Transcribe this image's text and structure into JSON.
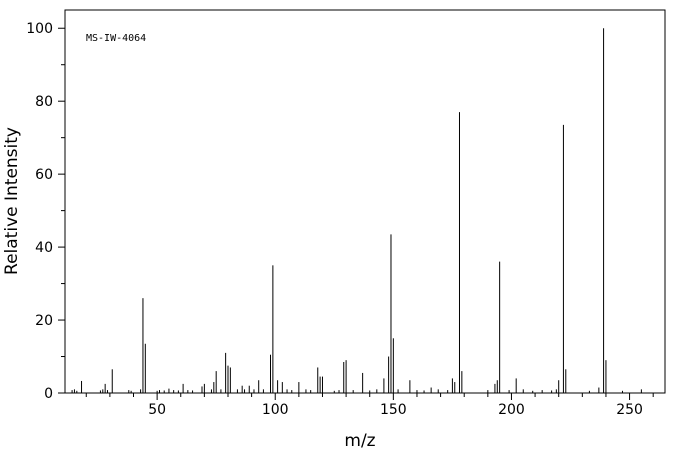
{
  "chart_data": {
    "type": "stem",
    "annotation": "MS-IW-4064",
    "xlabel": "m/z",
    "ylabel": "Relative Intensity",
    "color": "#000000",
    "x": [
      14,
      15,
      16,
      18,
      26,
      27,
      28,
      29,
      31,
      38,
      39,
      43,
      44,
      45,
      50,
      51,
      53,
      55,
      57,
      59,
      61,
      63,
      65,
      69,
      70,
      73,
      74,
      75,
      77,
      79,
      80,
      81,
      84,
      86,
      87,
      89,
      91,
      93,
      95,
      98,
      99,
      101,
      103,
      105,
      107,
      110,
      113,
      115,
      118,
      119,
      120,
      125,
      127,
      129,
      130,
      133,
      137,
      140,
      143,
      146,
      148,
      149,
      150,
      152,
      157,
      160,
      163,
      166,
      169,
      173,
      175,
      176,
      178,
      179,
      190,
      193,
      194,
      195,
      199,
      202,
      205,
      209,
      213,
      217,
      219,
      220,
      222,
      223,
      233,
      237,
      239,
      240,
      247,
      255
    ],
    "values": [
      0.8,
      1,
      0.6,
      3.3,
      0.7,
      1,
      2.5,
      0.8,
      6.5,
      0.8,
      0.6,
      1,
      26,
      13.5,
      0.6,
      0.8,
      0.7,
      1.2,
      0.8,
      0.7,
      2.5,
      0.8,
      0.7,
      1.8,
      2.5,
      1,
      3,
      6,
      1,
      11,
      7.5,
      7,
      1,
      2,
      1,
      2,
      1,
      3.5,
      1,
      10.5,
      35,
      3.5,
      3,
      1,
      0.8,
      3,
      1,
      0.8,
      7,
      4.5,
      4.5,
      0.6,
      0.8,
      8.5,
      9,
      0.8,
      5.5,
      0.7,
      1,
      4,
      10,
      43.5,
      15,
      1,
      3.5,
      0.8,
      0.7,
      1.5,
      1,
      0.8,
      4,
      3,
      77,
      6,
      0.8,
      2.5,
      3.5,
      36,
      0.8,
      4,
      1,
      0.6,
      0.8,
      0.7,
      1,
      3.5,
      73.5,
      6.5,
      0.6,
      1.5,
      100,
      9,
      0.6,
      1
    ],
    "xlim": [
      11,
      265
    ],
    "ylim": [
      0,
      105
    ],
    "xticks": [
      50,
      100,
      150,
      200,
      250
    ],
    "xminorticks": [
      20,
      30,
      40,
      60,
      70,
      80,
      90,
      110,
      120,
      130,
      140,
      160,
      170,
      180,
      190,
      210,
      220,
      230,
      240,
      260
    ],
    "yticks": [
      0,
      20,
      40,
      60,
      80,
      100
    ],
    "yminorticks": [
      10,
      30,
      50,
      70,
      90
    ]
  }
}
